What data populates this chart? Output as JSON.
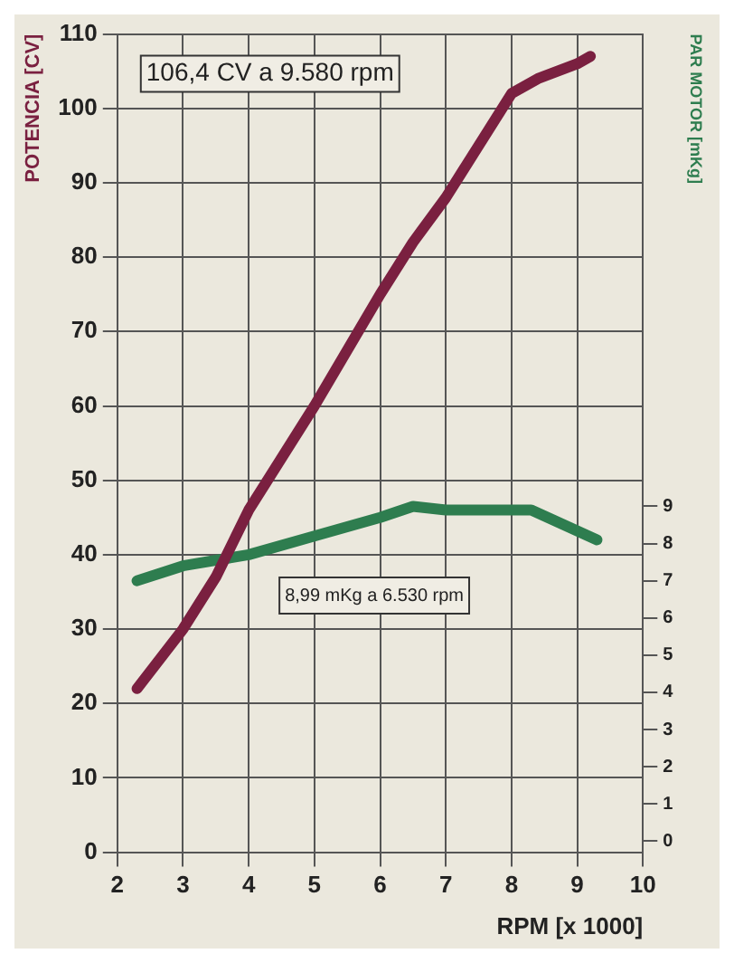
{
  "chart_data": {
    "type": "line",
    "xlabel": "RPM [x 1000]",
    "ylabel": "POTENCIA [CV]",
    "y2label": "PAR MOTOR [mKg]",
    "xlim": [
      2,
      10
    ],
    "xticks": [
      2,
      3,
      4,
      5,
      6,
      7,
      8,
      9,
      10
    ],
    "ylim": [
      0,
      110
    ],
    "yticks": [
      0,
      10,
      20,
      30,
      40,
      50,
      60,
      70,
      80,
      90,
      100,
      110
    ],
    "y2lim": [
      -0.3,
      21.7
    ],
    "y2ticks": [
      0,
      1,
      2,
      3,
      4,
      5,
      6,
      7,
      8,
      9
    ],
    "grid": true,
    "legend": false,
    "marker": "none",
    "line_style": "solid",
    "annotations": [
      "106,4 CV a 9.580 rpm",
      "8,99 mKg a 6.530 rpm"
    ],
    "series": [
      {
        "color": "#7a2040",
        "x": [
          2.3,
          3,
          3.5,
          4,
          5,
          6,
          6.5,
          7,
          7.5,
          8,
          8.4,
          9,
          9.2
        ],
        "values": [
          22,
          30,
          37,
          46,
          60,
          75,
          82,
          88,
          95,
          102,
          104,
          106,
          107
        ]
      },
      {
        "color": "#2e7d4f",
        "axis": "y2",
        "x": [
          2.3,
          3,
          4,
          5,
          6,
          6.5,
          7,
          8,
          8.3,
          9.3
        ],
        "values": [
          7.0,
          7.4,
          7.7,
          8.2,
          8.7,
          9.0,
          8.9,
          8.9,
          8.9,
          8.1
        ]
      }
    ]
  }
}
